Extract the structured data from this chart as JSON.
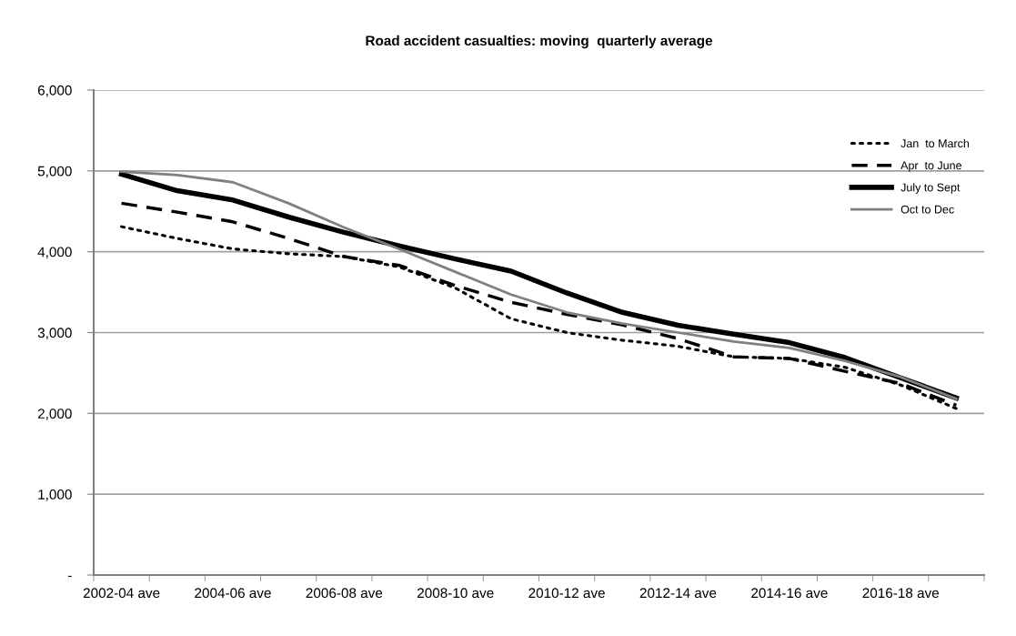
{
  "chart_data": {
    "type": "line",
    "title": "Road accident casualties: moving  quarterly average",
    "categories": [
      "2002-04 ave",
      null,
      "2004-06 ave",
      null,
      "2006-08 ave",
      null,
      "2008-10 ave",
      null,
      "2010-12 ave",
      null,
      "2012-14 ave",
      null,
      "2014-16 ave",
      null,
      "2016-18 ave",
      null
    ],
    "series": [
      {
        "name": "Jan  to March",
        "color": "#000000",
        "line_style": "dotted",
        "values": [
          4310,
          4165,
          4035,
          3975,
          3940,
          3810,
          3550,
          3170,
          3000,
          2905,
          2830,
          2700,
          2680,
          2570,
          2350,
          2060
        ]
      },
      {
        "name": "Apr  to June",
        "color": "#000000",
        "line_style": "dashed",
        "values": [
          4600,
          4490,
          4370,
          4165,
          3940,
          3830,
          3580,
          3375,
          3225,
          3095,
          2925,
          2700,
          2680,
          2520,
          2370,
          2100
        ]
      },
      {
        "name": "July to Sept",
        "color": "#000000",
        "line_style": "solid",
        "values": [
          4960,
          4755,
          4640,
          4430,
          4240,
          4070,
          3910,
          3760,
          3490,
          3250,
          3090,
          2980,
          2875,
          2690,
          2440,
          2190
        ]
      },
      {
        "name": "Oct to Dec",
        "color": "#808080",
        "line_style": "solid",
        "values": [
          4990,
          4950,
          4860,
          4600,
          4300,
          4030,
          3750,
          3470,
          3250,
          3110,
          3000,
          2890,
          2810,
          2650,
          2450,
          2180
        ]
      }
    ],
    "ylim": [
      0,
      6000
    ],
    "yticks": [
      {
        "value": 0,
        "label": "-"
      },
      {
        "value": 1000,
        "label": "1,000"
      },
      {
        "value": 2000,
        "label": "2,000"
      },
      {
        "value": 3000,
        "label": "3,000"
      },
      {
        "value": 4000,
        "label": "4,000"
      },
      {
        "value": 5000,
        "label": "5,000"
      },
      {
        "value": 6000,
        "label": "6,000"
      }
    ],
    "grid": "y",
    "legend": "top right",
    "marker": "none"
  }
}
